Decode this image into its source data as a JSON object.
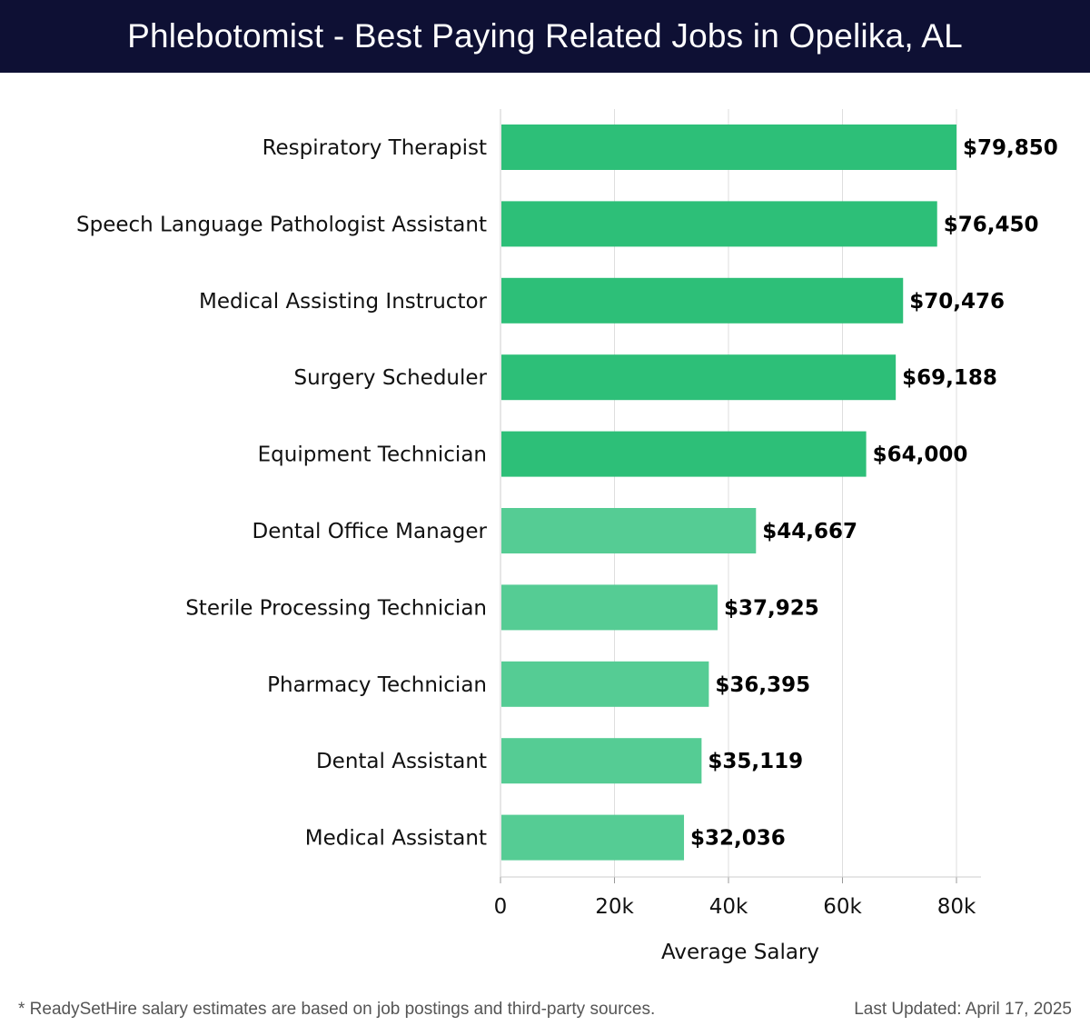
{
  "header": {
    "title": "Phlebotomist - Best Paying Related Jobs in Opelika, AL"
  },
  "chart_data": {
    "type": "bar",
    "orientation": "horizontal",
    "categories": [
      "Respiratory Therapist",
      "Speech Language Pathologist Assistant",
      "Medical Assisting Instructor",
      "Surgery Scheduler",
      "Equipment Technician",
      "Dental Office Manager",
      "Sterile Processing Technician",
      "Pharmacy Technician",
      "Dental Assistant",
      "Medical Assistant"
    ],
    "values": [
      79850,
      76450,
      70476,
      69188,
      64000,
      44667,
      37925,
      36395,
      35119,
      32036
    ],
    "value_labels": [
      "$79,850",
      "$76,450",
      "$70,476",
      "$69,188",
      "$64,000",
      "$44,667",
      "$37,925",
      "$36,395",
      "$35,119",
      "$32,036"
    ],
    "xlabel": "Average Salary",
    "ylabel": "",
    "xlim": [
      0,
      84000
    ],
    "x_ticks": [
      0,
      20000,
      40000,
      60000,
      80000
    ],
    "x_tick_labels": [
      "0",
      "20k",
      "40k",
      "60k",
      "80k"
    ],
    "grid": "vertical",
    "colors": {
      "high": "#2dbf78",
      "low": "#55cc94"
    }
  },
  "footer": {
    "note": "* ReadySetHire salary estimates are based on job postings and third-party sources.",
    "updated": "Last Updated: April 17, 2025"
  }
}
